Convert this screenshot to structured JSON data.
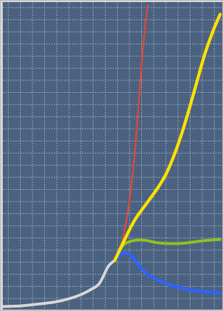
{
  "colors": {
    "background": "#4a6280",
    "grid": "#c7d2de",
    "frame": "#b9b9b9",
    "series": {
      "history": "#d8d8d8",
      "red": "#d94a3a",
      "yellow": "#ffe100",
      "green": "#8fc31f",
      "blue": "#2f63ff"
    }
  },
  "chart_data": {
    "type": "line",
    "title": "",
    "xlabel": "",
    "ylabel": "",
    "grid": true,
    "legend": "none",
    "xlim": [
      0,
      100
    ],
    "ylim": [
      0,
      100
    ],
    "series": [
      {
        "id": "history",
        "color": "#d8d8d8",
        "points": [
          [
            0,
            1
          ],
          [
            8,
            1.2
          ],
          [
            16,
            1.8
          ],
          [
            24,
            2.5
          ],
          [
            30,
            3.5
          ],
          [
            36,
            5
          ],
          [
            40,
            6.5
          ],
          [
            44,
            8.5
          ],
          [
            48,
            14
          ],
          [
            51,
            16
          ]
        ]
      },
      {
        "id": "red",
        "color": "#d94a3a",
        "points": [
          [
            51,
            16
          ],
          [
            54,
            21
          ],
          [
            57,
            32
          ],
          [
            60,
            50
          ],
          [
            62,
            68
          ],
          [
            64,
            86
          ],
          [
            66,
            99
          ]
        ]
      },
      {
        "id": "yellow",
        "color": "#ffe100",
        "points": [
          [
            51,
            16
          ],
          [
            55,
            22
          ],
          [
            60,
            29
          ],
          [
            66,
            35
          ],
          [
            71,
            40
          ],
          [
            75,
            45
          ],
          [
            80,
            54
          ],
          [
            84,
            63
          ],
          [
            88,
            73
          ],
          [
            92,
            83
          ],
          [
            96,
            91
          ],
          [
            99,
            96
          ]
        ]
      },
      {
        "id": "green",
        "color": "#8fc31f",
        "points": [
          [
            51,
            16
          ],
          [
            55,
            21
          ],
          [
            60,
            22.5
          ],
          [
            65,
            22.5
          ],
          [
            70,
            21.8
          ],
          [
            75,
            21.5
          ],
          [
            80,
            21.5
          ],
          [
            85,
            21.8
          ],
          [
            90,
            22.3
          ],
          [
            95,
            22.6
          ],
          [
            99,
            22.8
          ]
        ]
      },
      {
        "id": "blue",
        "color": "#2f63ff",
        "points": [
          [
            51,
            16
          ],
          [
            55,
            18.5
          ],
          [
            59,
            17
          ],
          [
            63,
            13.5
          ],
          [
            67,
            11
          ],
          [
            71,
            9.5
          ],
          [
            75,
            8.3
          ],
          [
            80,
            7.3
          ],
          [
            85,
            6.5
          ],
          [
            90,
            6
          ],
          [
            95,
            5.6
          ],
          [
            99,
            5.3
          ]
        ]
      }
    ]
  }
}
